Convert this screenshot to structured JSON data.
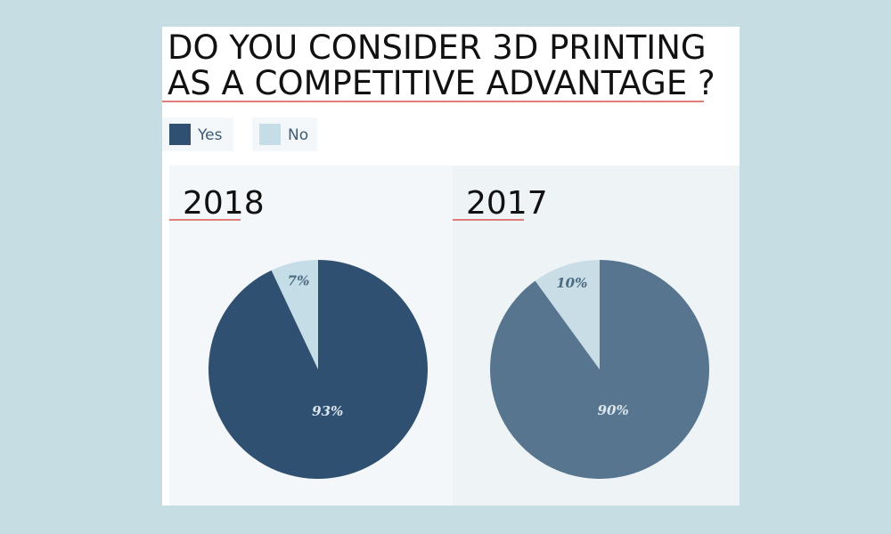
{
  "title": [
    "DO YOU CONSIDER 3D PRINTING",
    "AS A COMPETITIVE ADVANTAGE ?"
  ],
  "chart_data": [
    {
      "type": "pie",
      "title": "2018",
      "categories": [
        "Yes",
        "No"
      ],
      "values": [
        93,
        7
      ],
      "value_labels": [
        "93%",
        "7%"
      ],
      "colors": [
        "#2f5070",
        "#c5dde6"
      ]
    },
    {
      "type": "pie",
      "title": "2017",
      "categories": [
        "Yes",
        "No"
      ],
      "values": [
        90,
        10
      ],
      "value_labels": [
        "90%",
        "10%"
      ],
      "colors": [
        "#587590",
        "#c8dde6"
      ]
    }
  ]
}
